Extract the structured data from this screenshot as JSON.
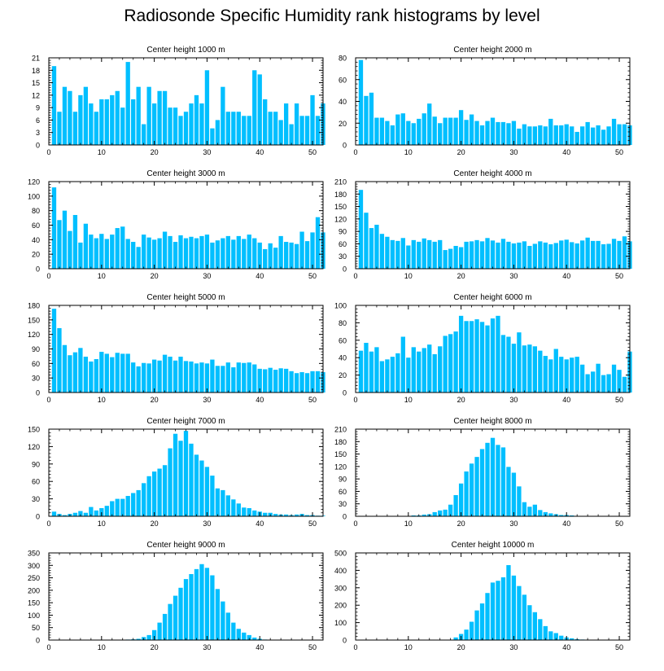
{
  "figure": {
    "title": "Radiosonde Specific Humidity rank histograms by level",
    "bar_color": "#00bfff",
    "axis_color": "#000000"
  },
  "chart_data": [
    {
      "type": "bar",
      "title": "Center height 1000 m",
      "xlim": [
        0,
        52
      ],
      "ylim": [
        0,
        21
      ],
      "xticks": [
        0,
        10,
        20,
        30,
        40,
        50
      ],
      "yticks": [
        0,
        3,
        6,
        9,
        12,
        15,
        18,
        21
      ],
      "x_start": 1,
      "values": [
        19,
        8,
        14,
        13,
        8,
        12,
        14,
        10,
        8,
        11,
        11,
        12,
        13,
        9,
        20,
        11,
        14,
        5,
        14,
        10,
        13,
        13,
        9,
        9,
        7,
        8,
        10,
        12,
        10,
        18,
        4,
        6,
        14,
        8,
        8,
        8,
        7,
        7,
        18,
        17,
        11,
        8,
        8,
        6,
        10,
        5,
        10,
        7,
        7,
        12,
        7,
        10
      ]
    },
    {
      "type": "bar",
      "title": "Center height 2000 m",
      "xlim": [
        0,
        52
      ],
      "ylim": [
        0,
        80
      ],
      "xticks": [
        0,
        10,
        20,
        30,
        40,
        50
      ],
      "yticks": [
        0,
        20,
        40,
        60,
        80
      ],
      "x_start": 1,
      "values": [
        78,
        45,
        48,
        25,
        25,
        22,
        18,
        28,
        29,
        22,
        20,
        24,
        29,
        38,
        26,
        20,
        25,
        25,
        25,
        32,
        23,
        28,
        22,
        18,
        22,
        25,
        21,
        21,
        20,
        22,
        15,
        19,
        17,
        17,
        18,
        17,
        24,
        18,
        18,
        19,
        17,
        12,
        17,
        21,
        16,
        18,
        14,
        17,
        24,
        19,
        19,
        18
      ]
    },
    {
      "type": "bar",
      "title": "Center height 3000 m",
      "xlim": [
        0,
        52
      ],
      "ylim": [
        0,
        120
      ],
      "xticks": [
        0,
        10,
        20,
        30,
        40,
        50
      ],
      "yticks": [
        0,
        20,
        40,
        60,
        80,
        100,
        120
      ],
      "x_start": 1,
      "values": [
        112,
        67,
        80,
        52,
        74,
        36,
        62,
        47,
        42,
        48,
        41,
        47,
        56,
        58,
        41,
        37,
        30,
        47,
        43,
        40,
        42,
        51,
        45,
        37,
        46,
        42,
        44,
        42,
        45,
        47,
        36,
        39,
        42,
        45,
        40,
        45,
        41,
        47,
        42,
        36,
        27,
        35,
        29,
        45,
        37,
        36,
        34,
        51,
        38,
        50,
        71,
        50
      ]
    },
    {
      "type": "bar",
      "title": "Center height 4000 m",
      "xlim": [
        0,
        52
      ],
      "ylim": [
        0,
        210
      ],
      "xticks": [
        0,
        10,
        20,
        30,
        40,
        50
      ],
      "yticks": [
        0,
        30,
        60,
        90,
        120,
        150,
        180,
        210
      ],
      "x_start": 1,
      "values": [
        190,
        135,
        98,
        106,
        84,
        77,
        69,
        67,
        74,
        56,
        69,
        65,
        73,
        69,
        65,
        69,
        45,
        48,
        55,
        52,
        65,
        66,
        69,
        66,
        74,
        68,
        63,
        72,
        65,
        61,
        63,
        66,
        55,
        60,
        66,
        63,
        59,
        62,
        68,
        70,
        64,
        61,
        68,
        75,
        67,
        67,
        59,
        60,
        72,
        67,
        78,
        66
      ]
    },
    {
      "type": "bar",
      "title": "Center height 5000 m",
      "xlim": [
        0,
        52
      ],
      "ylim": [
        0,
        180
      ],
      "xticks": [
        0,
        10,
        20,
        30,
        40,
        50
      ],
      "yticks": [
        0,
        30,
        60,
        90,
        120,
        150,
        180
      ],
      "x_start": 1,
      "values": [
        173,
        133,
        98,
        77,
        83,
        92,
        74,
        64,
        69,
        84,
        80,
        73,
        82,
        80,
        80,
        62,
        54,
        61,
        60,
        68,
        66,
        78,
        74,
        66,
        74,
        65,
        64,
        60,
        62,
        60,
        68,
        55,
        55,
        62,
        52,
        62,
        61,
        62,
        58,
        49,
        48,
        51,
        47,
        50,
        49,
        44,
        40,
        42,
        40,
        44,
        44,
        42
      ]
    },
    {
      "type": "bar",
      "title": "Center height 6000 m",
      "xlim": [
        0,
        52
      ],
      "ylim": [
        0,
        100
      ],
      "xticks": [
        0,
        10,
        20,
        30,
        40,
        50
      ],
      "yticks": [
        0,
        20,
        40,
        60,
        80,
        100
      ],
      "x_start": 1,
      "values": [
        48,
        57,
        47,
        52,
        36,
        38,
        41,
        45,
        64,
        40,
        52,
        47,
        51,
        55,
        44,
        53,
        65,
        67,
        70,
        88,
        82,
        82,
        84,
        81,
        77,
        85,
        88,
        66,
        64,
        56,
        69,
        54,
        55,
        53,
        48,
        42,
        38,
        50,
        41,
        38,
        40,
        41,
        32,
        21,
        24,
        33,
        20,
        21,
        32,
        26,
        18,
        47
      ]
    },
    {
      "type": "bar",
      "title": "Center height 7000 m",
      "xlim": [
        0,
        52
      ],
      "ylim": [
        0,
        150
      ],
      "xticks": [
        0,
        10,
        20,
        30,
        40,
        50
      ],
      "yticks": [
        0,
        30,
        60,
        90,
        120,
        150
      ],
      "x_start": 1,
      "values": [
        8,
        4,
        2,
        4,
        6,
        9,
        6,
        16,
        10,
        14,
        18,
        26,
        30,
        30,
        35,
        40,
        45,
        57,
        69,
        77,
        82,
        88,
        117,
        142,
        130,
        147,
        125,
        106,
        96,
        85,
        70,
        48,
        45,
        36,
        29,
        22,
        15,
        14,
        10,
        8,
        6,
        6,
        4,
        3,
        3,
        2,
        3,
        4,
        2,
        2,
        1,
        1
      ]
    },
    {
      "type": "bar",
      "title": "Center height 8000 m",
      "xlim": [
        0,
        52
      ],
      "ylim": [
        0,
        210
      ],
      "xticks": [
        0,
        10,
        20,
        30,
        40,
        50
      ],
      "yticks": [
        0,
        30,
        60,
        90,
        120,
        150,
        180,
        210
      ],
      "x_start": 1,
      "values": [
        0,
        0,
        0,
        0,
        0,
        0,
        0,
        0,
        0,
        0,
        2,
        2,
        4,
        5,
        10,
        14,
        16,
        28,
        51,
        79,
        108,
        127,
        143,
        162,
        177,
        189,
        172,
        166,
        119,
        105,
        72,
        34,
        23,
        28,
        15,
        10,
        7,
        5,
        3,
        3,
        2,
        1,
        1,
        0,
        0,
        0,
        0,
        0,
        0,
        0,
        0,
        0
      ]
    },
    {
      "type": "bar",
      "title": "Center height 9000 m",
      "xlim": [
        0,
        52
      ],
      "ylim": [
        0,
        350
      ],
      "xticks": [
        0,
        10,
        20,
        30,
        40,
        50
      ],
      "yticks": [
        0,
        50,
        100,
        150,
        200,
        250,
        300,
        350
      ],
      "x_start": 1,
      "values": [
        0,
        0,
        0,
        0,
        0,
        0,
        0,
        0,
        0,
        0,
        0,
        0,
        0,
        0,
        2,
        3,
        5,
        12,
        20,
        40,
        70,
        105,
        145,
        178,
        210,
        245,
        265,
        285,
        305,
        290,
        260,
        205,
        155,
        110,
        70,
        45,
        30,
        20,
        10,
        5,
        2,
        1,
        1,
        0,
        0,
        0,
        0,
        0,
        0,
        0,
        0,
        0
      ]
    },
    {
      "type": "bar",
      "title": "Center height 10000 m",
      "xlim": [
        0,
        52
      ],
      "ylim": [
        0,
        500
      ],
      "xticks": [
        0,
        10,
        20,
        30,
        40,
        50
      ],
      "yticks": [
        0,
        100,
        200,
        300,
        400,
        500
      ],
      "x_start": 1,
      "values": [
        0,
        0,
        0,
        0,
        0,
        0,
        0,
        0,
        0,
        0,
        0,
        0,
        0,
        0,
        0,
        0,
        0,
        0,
        15,
        35,
        60,
        105,
        170,
        210,
        270,
        330,
        340,
        360,
        430,
        370,
        310,
        260,
        200,
        160,
        120,
        80,
        50,
        40,
        25,
        15,
        10,
        5,
        3,
        2,
        1,
        1,
        0,
        0,
        0,
        0,
        0,
        0
      ]
    }
  ]
}
